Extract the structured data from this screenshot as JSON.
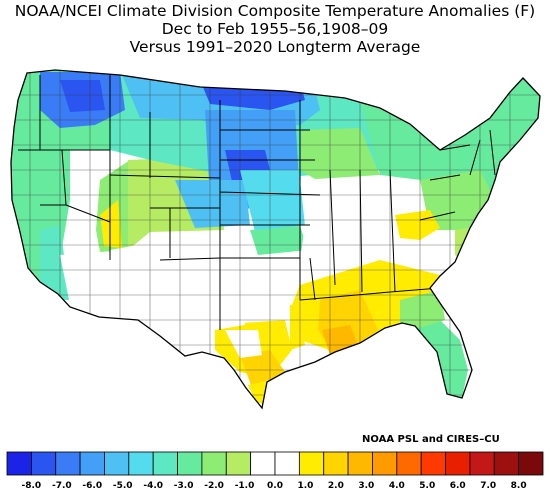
{
  "title": {
    "line1": "NOAA/NCEI Climate Division Composite Temperature Anomalies (F)",
    "line2": "Dec to Feb  1955–56,1908–09",
    "line3": "Versus 1991–2020 Longterm Average"
  },
  "credit": "NOAA PSL and CIRES–CU",
  "colorbar": {
    "colors": [
      "#1b23e6",
      "#2a55f0",
      "#3a7cf5",
      "#43a0f6",
      "#4ec0f3",
      "#55dbee",
      "#5de7c3",
      "#66ea9e",
      "#8cec74",
      "#b6ec64",
      "#ffffff",
      "#ffffff",
      "#ffec00",
      "#ffd400",
      "#ffb800",
      "#ff9a00",
      "#ff6a00",
      "#ff3a00",
      "#e82000",
      "#c21818",
      "#9c1010",
      "#7a0a0a"
    ],
    "tick_labels": [
      "-8.0",
      "-7.0",
      "-6.0",
      "-5.0",
      "-4.0",
      "-3.0",
      "-2.0",
      "-1.0",
      "0.0",
      "1.0",
      "2.0",
      "3.0",
      "4.0",
      "5.0",
      "6.0",
      "7.0",
      "8.0"
    ]
  },
  "colors": {
    "division_border": "#3a3a3a",
    "state_border": "#000000"
  }
}
